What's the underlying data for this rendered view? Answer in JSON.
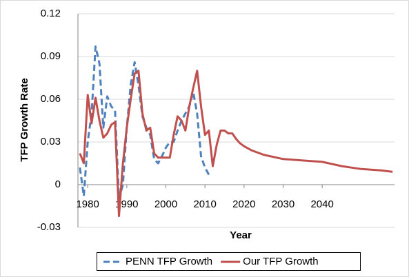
{
  "chart_data": {
    "type": "line",
    "x_label": "Year",
    "y_label": "TFP Growth Rate",
    "x": [
      1978,
      1979,
      1980,
      1981,
      1982,
      1983,
      1984,
      1985,
      1986,
      1987,
      1988,
      1989,
      1990,
      1991,
      1992,
      1993,
      1994,
      1995,
      1996,
      1997,
      1998,
      1999,
      2000,
      2001,
      2002,
      2003,
      2004,
      2005,
      2006,
      2007,
      2008,
      2009,
      2010,
      2011,
      2012,
      2013,
      2014,
      2015,
      2016,
      2017,
      2018,
      2019,
      2020,
      2022,
      2025,
      2030,
      2035,
      2040,
      2045,
      2050,
      2055,
      2058
    ],
    "series": [
      {
        "name": "PENN TFP Growth",
        "color": "#4f81bd",
        "dashed": true,
        "values": [
          0.012,
          -0.008,
          0.03,
          0.05,
          0.097,
          0.085,
          0.04,
          0.062,
          0.055,
          0.052,
          -0.01,
          0.0,
          0.04,
          0.07,
          0.086,
          0.07,
          0.048,
          0.04,
          0.035,
          0.018,
          0.015,
          0.02,
          0.026,
          0.03,
          0.03,
          0.038,
          0.045,
          0.05,
          0.055,
          0.065,
          0.05,
          0.02,
          0.012,
          0.007,
          null,
          null,
          null,
          null,
          null,
          null,
          null,
          null,
          null,
          null,
          null,
          null,
          null,
          null,
          null,
          null,
          null,
          null
        ]
      },
      {
        "name": "Our TFP Growth",
        "color": "#c0504d",
        "dashed": false,
        "values": [
          0.022,
          0.015,
          0.063,
          0.043,
          0.061,
          0.045,
          0.033,
          0.036,
          0.042,
          0.044,
          -0.022,
          0.015,
          0.04,
          0.06,
          0.078,
          0.08,
          0.05,
          0.038,
          0.04,
          0.022,
          0.019,
          0.019,
          0.019,
          0.019,
          0.035,
          0.048,
          0.045,
          0.038,
          0.055,
          0.068,
          0.08,
          0.055,
          0.035,
          0.038,
          0.013,
          0.028,
          0.038,
          0.038,
          0.036,
          0.036,
          0.032,
          0.029,
          0.027,
          0.024,
          0.021,
          0.018,
          0.017,
          0.016,
          0.013,
          0.011,
          0.01,
          0.009
        ]
      }
    ],
    "xlim": [
      1977.5,
      2058.5
    ],
    "xticks": [
      1980,
      1990,
      2000,
      2010,
      2020,
      2030,
      2040
    ],
    "ylim": [
      -0.03,
      0.12
    ],
    "yticks": [
      -0.03,
      0,
      0.03,
      0.06,
      0.09,
      0.12
    ],
    "grid": true,
    "legend": "bottom"
  }
}
